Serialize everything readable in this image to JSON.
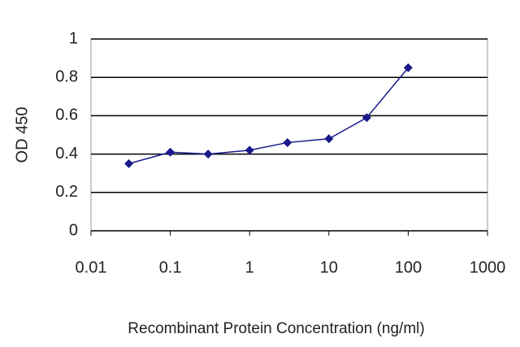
{
  "chart_data": {
    "type": "line",
    "x_label": "Recombinant Protein Concentration (ng/ml)",
    "y_label": "OD 450",
    "x": [
      0.03,
      0.1,
      0.3,
      1,
      3,
      10,
      30,
      100
    ],
    "series": [
      {
        "name": "OD 450",
        "color": "#1a1a8c",
        "values": [
          0.35,
          0.41,
          0.4,
          0.42,
          0.46,
          0.48,
          0.59,
          0.85
        ]
      }
    ],
    "xscale": "log",
    "xlim": [
      0.01,
      1000
    ],
    "xticks": [
      0.01,
      0.1,
      1,
      10,
      100,
      1000
    ],
    "ylim": [
      0,
      1
    ],
    "yticks": [
      0,
      0.2,
      0.4,
      0.6,
      0.8,
      1
    ],
    "grid": true
  }
}
